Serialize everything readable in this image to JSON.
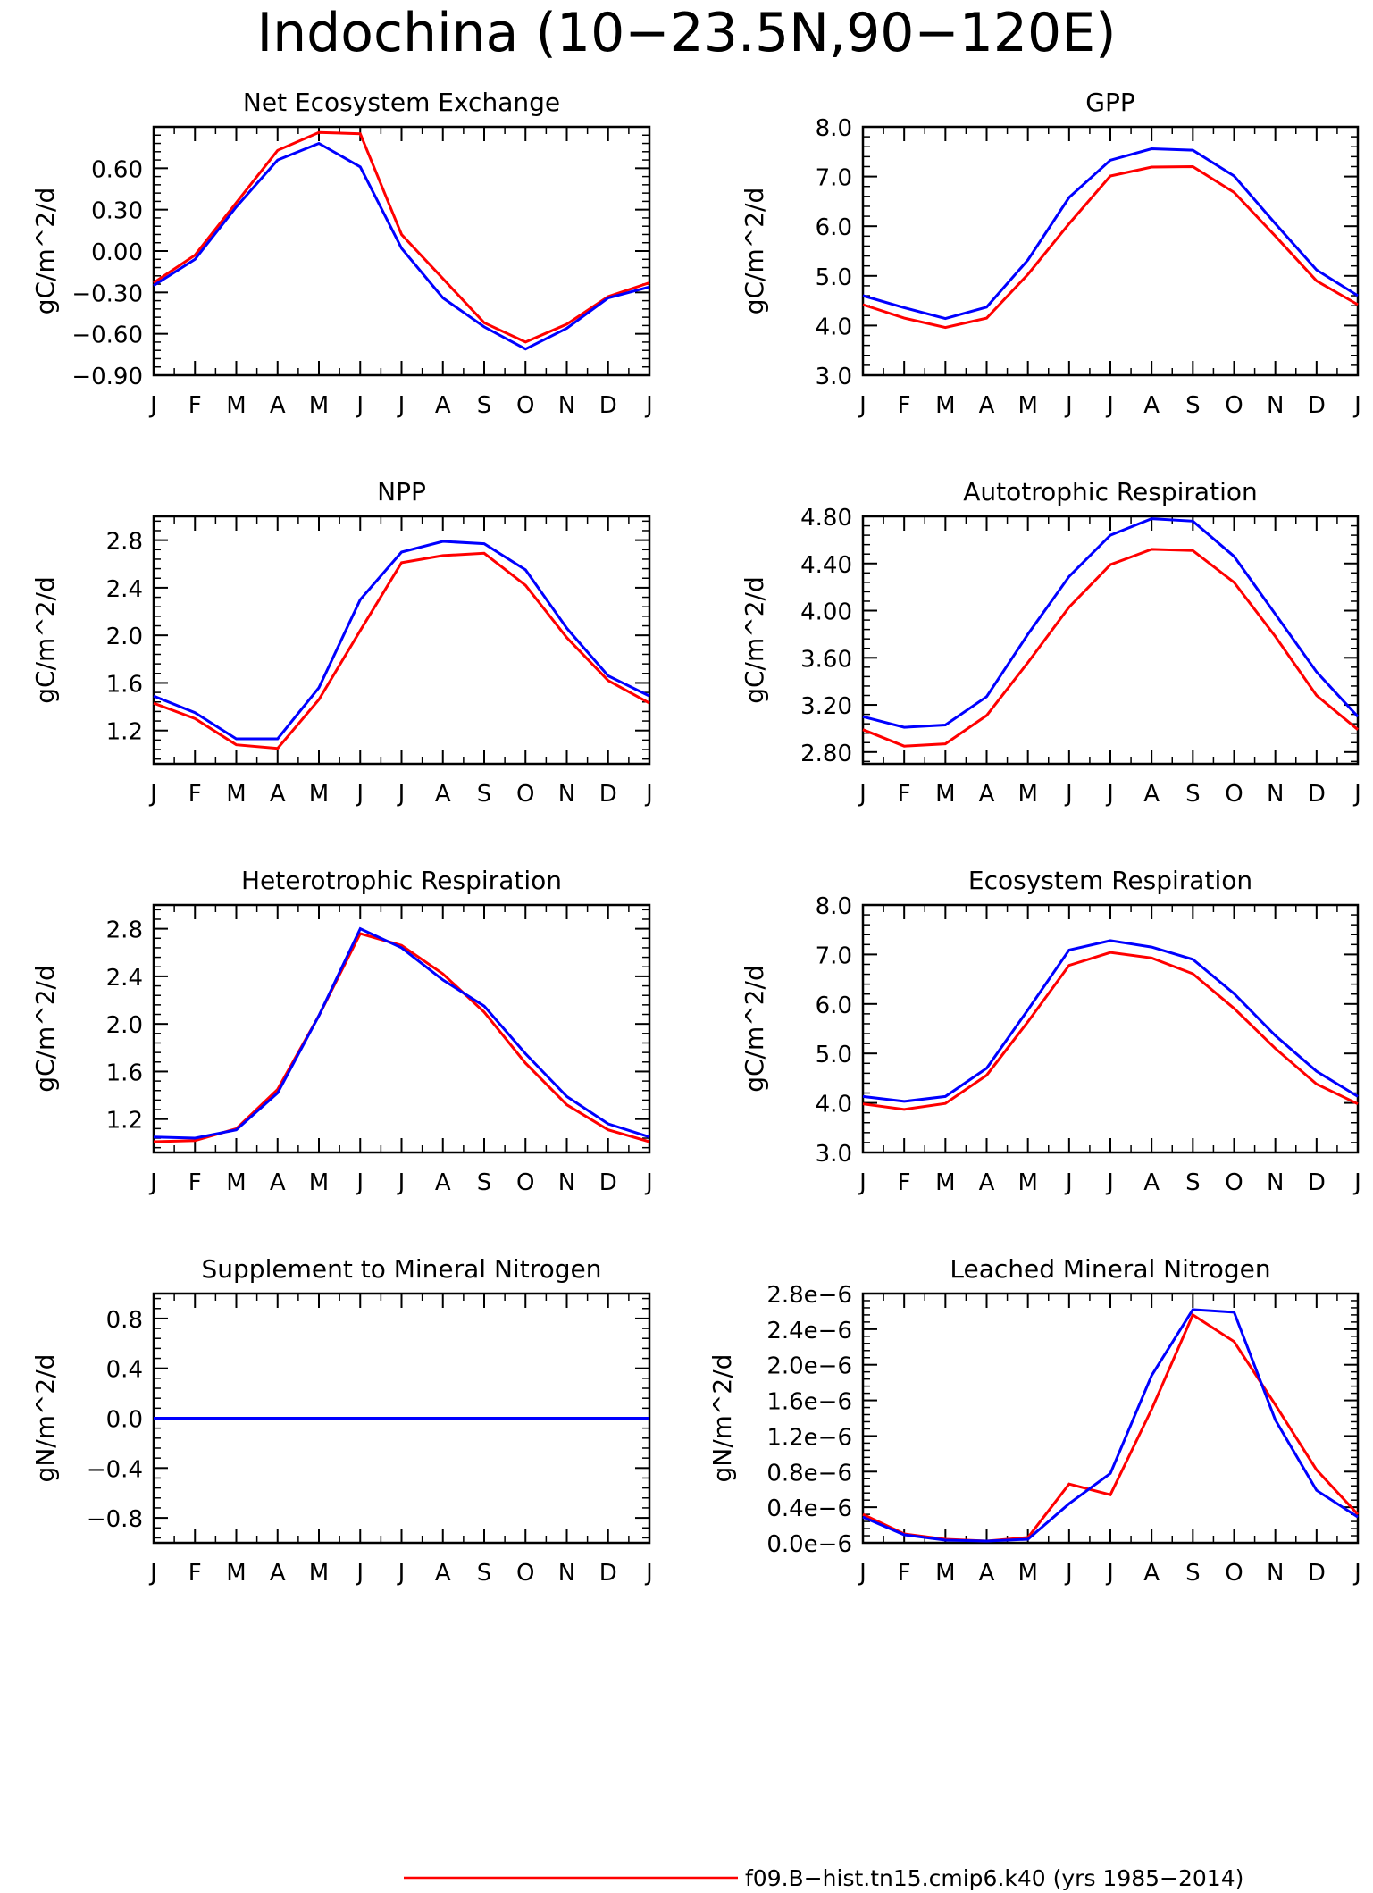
{
  "title": "Indochina (10−23.5N,90−120E)",
  "colors": {
    "model_red": "#ff0000",
    "model_blue": "#0000ff",
    "axis": "#000000"
  },
  "months": [
    "J",
    "F",
    "M",
    "A",
    "M",
    "J",
    "J",
    "A",
    "S",
    "O",
    "N",
    "D",
    "J"
  ],
  "legend": [
    {
      "label": "f09.B−hist.tn15.cmip6.k40 (yrs 1985−2014)",
      "color": "#ff0000"
    }
  ],
  "chart_data": [
    {
      "type": "line",
      "title": "Net Ecosystem Exchange",
      "ylabel": "gC/m^2/d",
      "ylim": [
        -0.9,
        0.9
      ],
      "yticks": [
        -0.9,
        -0.6,
        -0.3,
        0.0,
        0.3,
        0.6
      ],
      "ytick_labels": [
        "−0.90",
        "−0.60",
        "−0.30",
        "0.00",
        "0.30",
        "0.60"
      ],
      "categories": [
        "J",
        "F",
        "M",
        "A",
        "M",
        "J",
        "J",
        "A",
        "S",
        "O",
        "N",
        "D",
        "J"
      ],
      "series": [
        {
          "color": "#ff0000",
          "values": [
            -0.23,
            -0.03,
            0.35,
            0.73,
            0.86,
            0.85,
            0.12,
            -0.2,
            -0.52,
            -0.66,
            -0.53,
            -0.33,
            -0.23
          ]
        },
        {
          "color": "#0000ff",
          "values": [
            -0.25,
            -0.06,
            0.32,
            0.66,
            0.78,
            0.61,
            0.02,
            -0.34,
            -0.55,
            -0.71,
            -0.56,
            -0.34,
            -0.26
          ]
        }
      ]
    },
    {
      "type": "line",
      "title": "GPP",
      "ylabel": "gC/m^2/d",
      "ylim": [
        3.0,
        8.0
      ],
      "yticks": [
        3.0,
        4.0,
        5.0,
        6.0,
        7.0,
        8.0
      ],
      "ytick_labels": [
        "3.0",
        "4.0",
        "5.0",
        "6.0",
        "7.0",
        "8.0"
      ],
      "categories": [
        "J",
        "F",
        "M",
        "A",
        "M",
        "J",
        "J",
        "A",
        "S",
        "O",
        "N",
        "D",
        "J"
      ],
      "series": [
        {
          "color": "#ff0000",
          "values": [
            4.42,
            4.15,
            3.96,
            4.15,
            5.03,
            6.05,
            7.01,
            7.19,
            7.2,
            6.68,
            5.8,
            4.9,
            4.42
          ]
        },
        {
          "color": "#0000ff",
          "values": [
            4.6,
            4.36,
            4.14,
            4.37,
            5.32,
            6.58,
            7.33,
            7.56,
            7.53,
            7.01,
            6.05,
            5.12,
            4.6
          ]
        }
      ]
    },
    {
      "type": "line",
      "title": "NPP",
      "ylabel": "gC/m^2/d",
      "ylim": [
        0.92,
        3.0
      ],
      "yticks": [
        1.2,
        1.6,
        2.0,
        2.4,
        2.8
      ],
      "ytick_labels": [
        "1.2",
        "1.6",
        "2.0",
        "2.4",
        "2.8"
      ],
      "categories": [
        "J",
        "F",
        "M",
        "A",
        "M",
        "J",
        "J",
        "A",
        "S",
        "O",
        "N",
        "D",
        "J"
      ],
      "series": [
        {
          "color": "#ff0000",
          "values": [
            1.43,
            1.3,
            1.08,
            1.05,
            1.46,
            2.04,
            2.61,
            2.67,
            2.69,
            2.42,
            1.98,
            1.62,
            1.43
          ]
        },
        {
          "color": "#0000ff",
          "values": [
            1.49,
            1.35,
            1.13,
            1.13,
            1.56,
            2.3,
            2.7,
            2.79,
            2.77,
            2.55,
            2.06,
            1.66,
            1.49
          ]
        }
      ]
    },
    {
      "type": "line",
      "title": "Autotrophic Respiration",
      "ylabel": "gC/m^2/d",
      "ylim": [
        2.7,
        4.8
      ],
      "yticks": [
        2.8,
        3.2,
        3.6,
        4.0,
        4.4,
        4.8
      ],
      "ytick_labels": [
        "2.80",
        "3.20",
        "3.60",
        "4.00",
        "4.40",
        "4.80"
      ],
      "categories": [
        "J",
        "F",
        "M",
        "A",
        "M",
        "J",
        "J",
        "A",
        "S",
        "O",
        "N",
        "D",
        "J"
      ],
      "series": [
        {
          "color": "#ff0000",
          "values": [
            2.99,
            2.85,
            2.87,
            3.11,
            3.56,
            4.03,
            4.39,
            4.52,
            4.51,
            4.24,
            3.78,
            3.28,
            2.99
          ]
        },
        {
          "color": "#0000ff",
          "values": [
            3.1,
            3.01,
            3.03,
            3.27,
            3.8,
            4.29,
            4.64,
            4.78,
            4.76,
            4.46,
            3.97,
            3.48,
            3.1
          ]
        }
      ]
    },
    {
      "type": "line",
      "title": "Heterotrophic Respiration",
      "ylabel": "gC/m^2/d",
      "ylim": [
        0.92,
        3.0
      ],
      "yticks": [
        1.2,
        1.6,
        2.0,
        2.4,
        2.8
      ],
      "ytick_labels": [
        "1.2",
        "1.6",
        "2.0",
        "2.4",
        "2.8"
      ],
      "categories": [
        "J",
        "F",
        "M",
        "A",
        "M",
        "J",
        "J",
        "A",
        "S",
        "O",
        "N",
        "D",
        "J"
      ],
      "series": [
        {
          "color": "#ff0000",
          "values": [
            1.01,
            1.02,
            1.12,
            1.45,
            2.07,
            2.76,
            2.66,
            2.42,
            2.1,
            1.67,
            1.32,
            1.11,
            1.01
          ]
        },
        {
          "color": "#0000ff",
          "values": [
            1.05,
            1.04,
            1.11,
            1.42,
            2.07,
            2.8,
            2.64,
            2.37,
            2.15,
            1.75,
            1.39,
            1.16,
            1.05
          ]
        }
      ]
    },
    {
      "type": "line",
      "title": "Ecosystem Respiration",
      "ylabel": "gC/m^2/d",
      "ylim": [
        3.0,
        8.0
      ],
      "yticks": [
        3.0,
        4.0,
        5.0,
        6.0,
        7.0,
        8.0
      ],
      "ytick_labels": [
        "3.0",
        "4.0",
        "5.0",
        "6.0",
        "7.0",
        "8.0"
      ],
      "categories": [
        "J",
        "F",
        "M",
        "A",
        "M",
        "J",
        "J",
        "A",
        "S",
        "O",
        "N",
        "D",
        "J"
      ],
      "series": [
        {
          "color": "#ff0000",
          "values": [
            3.98,
            3.87,
            3.99,
            4.56,
            5.64,
            6.78,
            7.04,
            6.93,
            6.61,
            5.91,
            5.1,
            4.38,
            3.98
          ]
        },
        {
          "color": "#0000ff",
          "values": [
            4.13,
            4.03,
            4.13,
            4.7,
            5.88,
            7.09,
            7.28,
            7.15,
            6.9,
            6.21,
            5.36,
            4.64,
            4.13
          ]
        }
      ]
    },
    {
      "type": "line",
      "title": "Supplement to Mineral Nitrogen",
      "ylabel": "gN/m^2/d",
      "ylim": [
        -1.0,
        1.0
      ],
      "yticks": [
        -0.8,
        -0.4,
        0.0,
        0.4,
        0.8
      ],
      "ytick_labels": [
        "−0.8",
        "−0.4",
        "0.0",
        "0.4",
        "0.8"
      ],
      "categories": [
        "J",
        "F",
        "M",
        "A",
        "M",
        "J",
        "J",
        "A",
        "S",
        "O",
        "N",
        "D",
        "J"
      ],
      "series": [
        {
          "color": "#ff0000",
          "values": [
            0,
            0,
            0,
            0,
            0,
            0,
            0,
            0,
            0,
            0,
            0,
            0,
            0
          ]
        },
        {
          "color": "#0000ff",
          "values": [
            0,
            0,
            0,
            0,
            0,
            0,
            0,
            0,
            0,
            0,
            0,
            0,
            0
          ]
        }
      ]
    },
    {
      "type": "line",
      "title": "Leached Mineral Nitrogen",
      "ylabel": "gN/m^2/d",
      "ylim": [
        0.0,
        2.8
      ],
      "yticks": [
        0.0,
        0.4,
        0.8,
        1.2,
        1.6,
        2.0,
        2.4,
        2.8
      ],
      "ytick_labels": [
        "0.0e−6",
        "0.4e−6",
        "0.8e−6",
        "1.2e−6",
        "1.6e−6",
        "2.0e−6",
        "2.4e−6",
        "2.8e−6"
      ],
      "y_unit_note": "values in units of 1e-6",
      "categories": [
        "J",
        "F",
        "M",
        "A",
        "M",
        "J",
        "J",
        "A",
        "S",
        "O",
        "N",
        "D",
        "J"
      ],
      "series": [
        {
          "color": "#ff0000",
          "values": [
            0.32,
            0.1,
            0.04,
            0.02,
            0.06,
            0.66,
            0.54,
            1.5,
            2.56,
            2.26,
            1.55,
            0.82,
            0.32
          ]
        },
        {
          "color": "#0000ff",
          "values": [
            0.29,
            0.09,
            0.03,
            0.02,
            0.04,
            0.44,
            0.78,
            1.88,
            2.62,
            2.59,
            1.38,
            0.59,
            0.29
          ]
        }
      ]
    }
  ]
}
